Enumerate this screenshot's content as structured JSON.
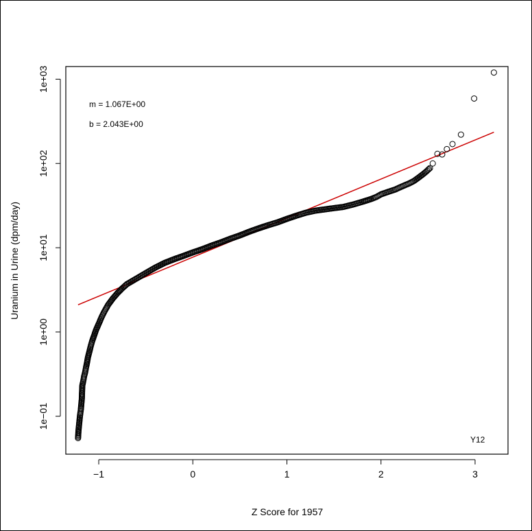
{
  "chart_data": {
    "type": "scatter",
    "title": "",
    "xlabel": "Z Score for 1957",
    "ylabel": "Uranium in Urine (dpm/day)",
    "xlim": [
      -1.35,
      3.35
    ],
    "ylim_log10": [
      -1.45,
      3.15
    ],
    "y_scale": "log10",
    "x_ticks": [
      -1,
      0,
      1,
      2,
      3
    ],
    "x_tick_labels": [
      "−1",
      "0",
      "1",
      "2",
      "3"
    ],
    "y_ticks_log10": [
      -1,
      0,
      1,
      2,
      3
    ],
    "y_tick_labels": [
      "1e−01",
      "1e+00",
      "1e+01",
      "1e+02",
      "1e+03"
    ],
    "grid": false,
    "annotations": {
      "m": "m =  1.067E+00",
      "b": "b =  2.043E+00",
      "site": "Y12"
    },
    "series": [
      {
        "marker": "open-circle",
        "color": "#000000",
        "points": [
          [
            -1.22,
            0.055
          ],
          [
            -1.215,
            0.068
          ],
          [
            -1.2,
            0.1
          ],
          [
            -1.195,
            0.11
          ],
          [
            -1.19,
            0.12
          ],
          [
            -1.185,
            0.14
          ],
          [
            -1.18,
            0.16
          ],
          [
            -1.175,
            0.23
          ],
          [
            -1.165,
            0.26
          ],
          [
            -1.155,
            0.3
          ],
          [
            -1.145,
            0.33
          ],
          [
            -1.135,
            0.38
          ],
          [
            -1.125,
            0.43
          ],
          [
            -1.115,
            0.5
          ],
          [
            -1.1,
            0.58
          ],
          [
            -1.085,
            0.68
          ],
          [
            -1.07,
            0.78
          ],
          [
            -1.05,
            0.9
          ],
          [
            -1.03,
            1.05
          ],
          [
            -1.0,
            1.25
          ],
          [
            -0.97,
            1.5
          ],
          [
            -0.94,
            1.75
          ],
          [
            -0.9,
            2.1
          ],
          [
            -0.85,
            2.5
          ],
          [
            -0.8,
            2.9
          ],
          [
            -0.75,
            3.3
          ],
          [
            -0.7,
            3.7
          ],
          [
            -0.6,
            4.3
          ],
          [
            -0.5,
            5.0
          ],
          [
            -0.4,
            5.8
          ],
          [
            -0.3,
            6.6
          ],
          [
            -0.2,
            7.3
          ],
          [
            -0.1,
            8.0
          ],
          [
            0.0,
            8.8
          ],
          [
            0.1,
            9.6
          ],
          [
            0.2,
            10.6
          ],
          [
            0.3,
            11.6
          ],
          [
            0.4,
            12.8
          ],
          [
            0.5,
            14.0
          ],
          [
            0.6,
            15.5
          ],
          [
            0.7,
            17.0
          ],
          [
            0.8,
            18.5
          ],
          [
            0.9,
            20.0
          ],
          [
            1.0,
            22.0
          ],
          [
            1.1,
            24.0
          ],
          [
            1.2,
            26.0
          ],
          [
            1.3,
            27.5
          ],
          [
            1.4,
            28.5
          ],
          [
            1.5,
            29.5
          ],
          [
            1.6,
            30.5
          ],
          [
            1.7,
            32.5
          ],
          [
            1.8,
            35.0
          ],
          [
            1.9,
            38.0
          ],
          [
            1.95,
            40.0
          ],
          [
            2.0,
            43.0
          ],
          [
            2.05,
            45.0
          ],
          [
            2.1,
            47.0
          ],
          [
            2.15,
            49.0
          ],
          [
            2.2,
            52.0
          ],
          [
            2.25,
            55.0
          ],
          [
            2.3,
            58.0
          ],
          [
            2.35,
            62.0
          ],
          [
            2.4,
            68.0
          ],
          [
            2.45,
            75.0
          ],
          [
            2.48,
            80.0
          ],
          [
            2.52,
            88.0
          ],
          [
            2.55,
            100.0
          ],
          [
            2.6,
            130.0
          ],
          [
            2.65,
            128.0
          ],
          [
            2.7,
            148.0
          ],
          [
            2.76,
            170.0
          ],
          [
            2.85,
            220.0
          ],
          [
            2.99,
            590.0
          ],
          [
            3.2,
            1200.0
          ]
        ]
      }
    ],
    "fit_line": {
      "color": "#cc0000",
      "x": [
        -1.22,
        3.2
      ],
      "y": [
        2.1,
        235.0
      ]
    }
  }
}
